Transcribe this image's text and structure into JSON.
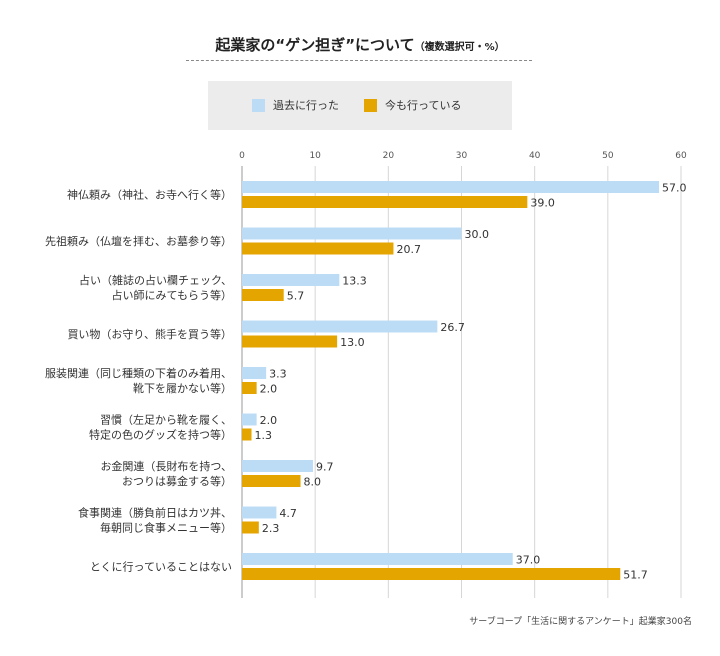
{
  "title": "起業家の“ゲン担ぎ”について",
  "title_sub": "（複数選択可・%）",
  "source": "サーブコープ「生活に関するアンケート」起業家300名",
  "colors": {
    "past": "#bcdcf5",
    "now": "#e5a500",
    "grid": "#d6d6d6",
    "axis": "#999999"
  },
  "chart_data": {
    "type": "bar",
    "orientation": "horizontal",
    "categories": [
      [
        "神仏頼み（神社、お寺へ行く等）"
      ],
      [
        "先祖頼み（仏壇を拝む、お墓参り等）"
      ],
      [
        "占い（雑誌の占い欄チェック、",
        "占い師にみてもらう等）"
      ],
      [
        "買い物（お守り、熊手を買う等）"
      ],
      [
        "服装関連（同じ種類の下着のみ着用、",
        "靴下を履かない等）"
      ],
      [
        "習慣（左足から靴を履く、",
        "特定の色のグッズを持つ等）"
      ],
      [
        "お金関連（長財布を持つ、",
        "おつりは募金する等）"
      ],
      [
        "食事関連（勝負前日はカツ丼、",
        "毎朝同じ食事メニュー等）"
      ],
      [
        "とくに行っていることはない"
      ]
    ],
    "series": [
      {
        "name": "過去に行った",
        "values": [
          57.0,
          30.0,
          13.3,
          26.7,
          3.3,
          2.0,
          9.7,
          4.7,
          37.0
        ]
      },
      {
        "name": "今も行っている",
        "values": [
          39.0,
          20.7,
          5.7,
          13.0,
          2.0,
          1.3,
          8.0,
          2.3,
          51.7
        ]
      }
    ],
    "xlim": [
      0,
      60
    ],
    "ticks": [
      0,
      10,
      20,
      30,
      40,
      50,
      60
    ],
    "grid": true,
    "legend_position": "top"
  }
}
